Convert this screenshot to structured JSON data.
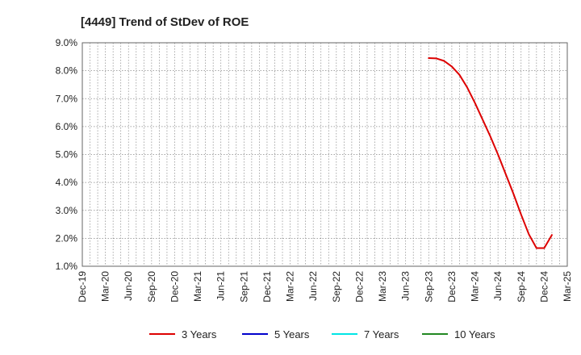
{
  "chart_data": {
    "type": "line",
    "title": "[4449]  Trend of StDev of ROE",
    "x_ticks": [
      "Dec-19",
      "Mar-20",
      "Jun-20",
      "Sep-20",
      "Dec-20",
      "Mar-21",
      "Jun-21",
      "Sep-21",
      "Dec-21",
      "Mar-22",
      "Jun-22",
      "Sep-22",
      "Dec-22",
      "Mar-23",
      "Jun-23",
      "Sep-23",
      "Dec-23",
      "Mar-24",
      "Jun-24",
      "Sep-24",
      "Dec-24",
      "Mar-25"
    ],
    "y_ticks": [
      "1.0%",
      "2.0%",
      "3.0%",
      "4.0%",
      "5.0%",
      "6.0%",
      "7.0%",
      "8.0%",
      "9.0%"
    ],
    "ylim": [
      1.0,
      9.0
    ],
    "y_unit": "%",
    "grid": true,
    "legend_position": "bottom",
    "series": [
      {
        "name": "3 Years",
        "color": "#dd0000",
        "points": [
          {
            "x": "Sep-23",
            "y": 8.45
          },
          {
            "x": "Oct-23",
            "y": 8.44
          },
          {
            "x": "Nov-23",
            "y": 8.35
          },
          {
            "x": "Dec-23",
            "y": 8.15
          },
          {
            "x": "Jan-24",
            "y": 7.85
          },
          {
            "x": "Feb-24",
            "y": 7.4
          },
          {
            "x": "Mar-24",
            "y": 6.85
          },
          {
            "x": "Apr-24",
            "y": 6.25
          },
          {
            "x": "May-24",
            "y": 5.65
          },
          {
            "x": "Jun-24",
            "y": 5.0
          },
          {
            "x": "Jul-24",
            "y": 4.3
          },
          {
            "x": "Aug-24",
            "y": 3.6
          },
          {
            "x": "Sep-24",
            "y": 2.85
          },
          {
            "x": "Oct-24",
            "y": 2.15
          },
          {
            "x": "Nov-24",
            "y": 1.65
          },
          {
            "x": "Dec-24",
            "y": 1.65
          },
          {
            "x": "Jan-25",
            "y": 2.12
          }
        ]
      },
      {
        "name": "5 Years",
        "color": "#0000cc",
        "points": []
      },
      {
        "name": "7 Years",
        "color": "#00e5e5",
        "points": []
      },
      {
        "name": "10 Years",
        "color": "#228822",
        "points": []
      }
    ]
  }
}
